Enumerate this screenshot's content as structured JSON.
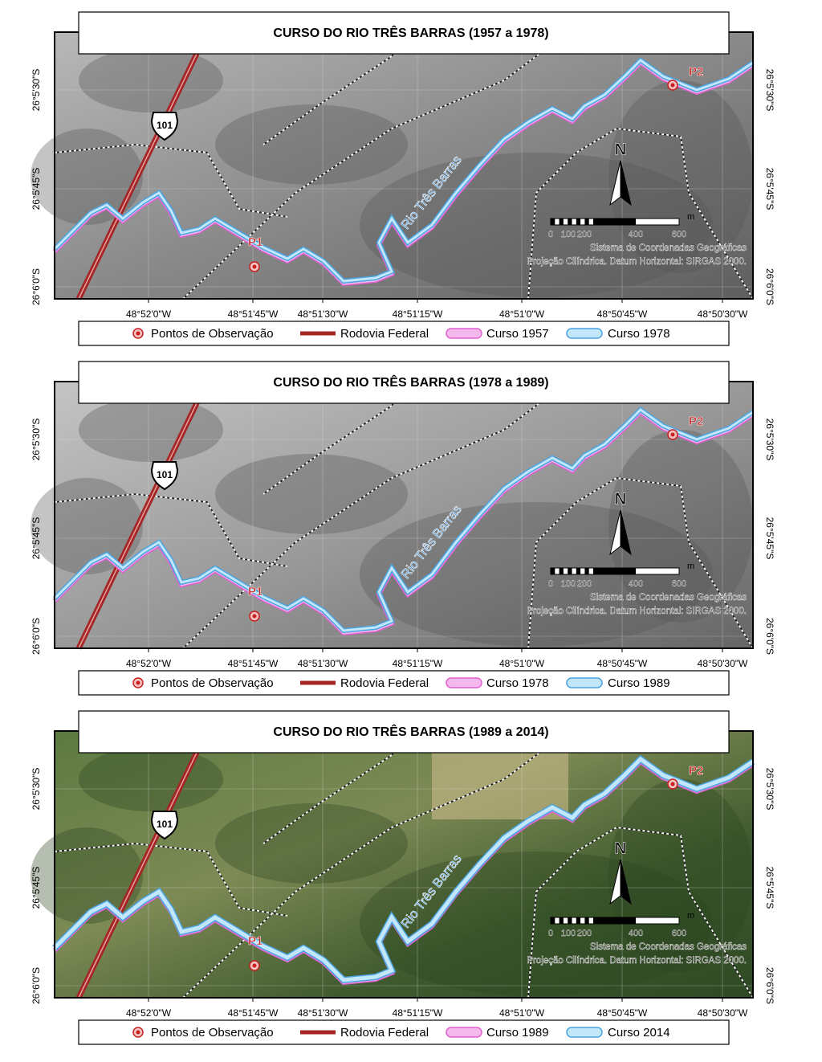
{
  "panels": [
    {
      "title": "CURSO DO RIO TRÊS BARRAS (1957 a 1978)",
      "legend": [
        "Pontos de Observação",
        "Rodovia Federal",
        "Curso 1957",
        "Curso 1978"
      ]
    },
    {
      "title": "CURSO DO RIO TRÊS BARRAS (1978 a 1989)",
      "legend": [
        "Pontos de Observação",
        "Rodovia Federal",
        "Curso 1978",
        "Curso 1989"
      ]
    },
    {
      "title": "CURSO DO RIO TRÊS BARRAS (1989 a 2014)",
      "legend": [
        "Pontos de Observação",
        "Rodovia Federal",
        "Curso 1989",
        "Curso 2014"
      ]
    }
  ],
  "common": {
    "longitudes": [
      "48°52'0\"W",
      "48°51'45\"W",
      "48°51'30\"W",
      "48°51'15\"W",
      "48°51'0\"W",
      "48°50'45\"W",
      "48°50'30\"W"
    ],
    "latitudes": [
      "26°5'30\"S",
      "26°5'45\"S",
      "26°6'0\"S"
    ],
    "points": [
      "P1",
      "P2"
    ],
    "river": "Rio Três Barras",
    "road_number": "101",
    "north": "N",
    "scale_labels": [
      "0",
      "100",
      "200",
      "400",
      "600"
    ],
    "scale_unit": "m",
    "credits": [
      "Sistema de Coordenadas Geográficas",
      "Projeção Cilíndrica. Datum Horizontal: SIRGAS 2000."
    ]
  }
}
